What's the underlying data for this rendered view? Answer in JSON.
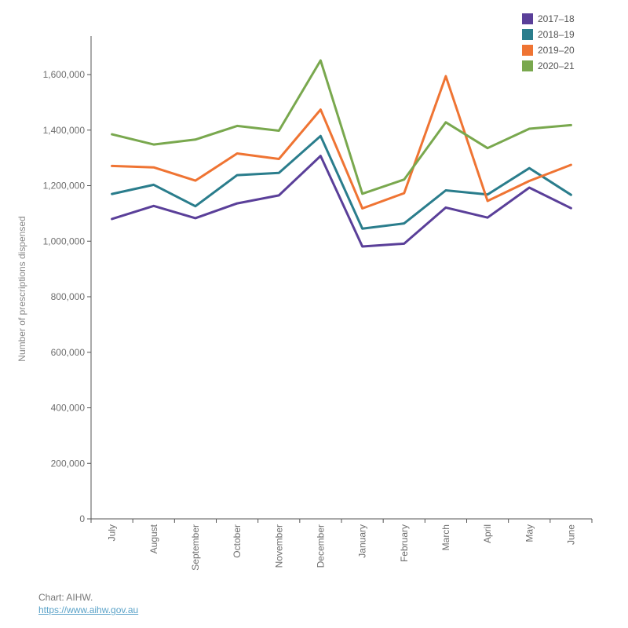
{
  "chart_data": {
    "type": "line",
    "ylabel": "Number of prescriptions dispensed",
    "xlabel": "",
    "ylim": [
      0,
      1700000
    ],
    "yticks": [
      0,
      200000,
      400000,
      600000,
      800000,
      1000000,
      1200000,
      1400000,
      1600000
    ],
    "ytick_labels": [
      "0",
      "200,000",
      "400,000",
      "600,000",
      "800,000",
      "1,000,000",
      "1,200,000",
      "1,400,000",
      "1,600,000"
    ],
    "categories": [
      "July",
      "August",
      "September",
      "October",
      "November",
      "December",
      "January",
      "February",
      "March",
      "April",
      "May",
      "June"
    ],
    "grid": false,
    "legend_position": "top-right",
    "series": [
      {
        "name": "2017–18",
        "color": "#5a3f99",
        "values": [
          1080000,
          1127000,
          1083000,
          1136000,
          1165000,
          1307000,
          981000,
          991000,
          1121000,
          1085000,
          1193000,
          1119000
        ]
      },
      {
        "name": "2018–19",
        "color": "#2a7d8c",
        "values": [
          1170000,
          1203000,
          1126000,
          1238000,
          1246000,
          1379000,
          1045000,
          1064000,
          1183000,
          1168000,
          1263000,
          1167000
        ]
      },
      {
        "name": "2019–20",
        "color": "#ef7433",
        "values": [
          1271000,
          1266000,
          1218000,
          1316000,
          1296000,
          1474000,
          1118000,
          1173000,
          1594000,
          1145000,
          1217000,
          1275000
        ]
      },
      {
        "name": "2020–21",
        "color": "#79a84e",
        "values": [
          1385000,
          1348000,
          1366000,
          1415000,
          1398000,
          1651000,
          1171000,
          1222000,
          1428000,
          1335000,
          1405000,
          1418000
        ]
      }
    ]
  },
  "source": {
    "text": "Chart: AIHW.",
    "link": "https://www.aihw.gov.au"
  }
}
